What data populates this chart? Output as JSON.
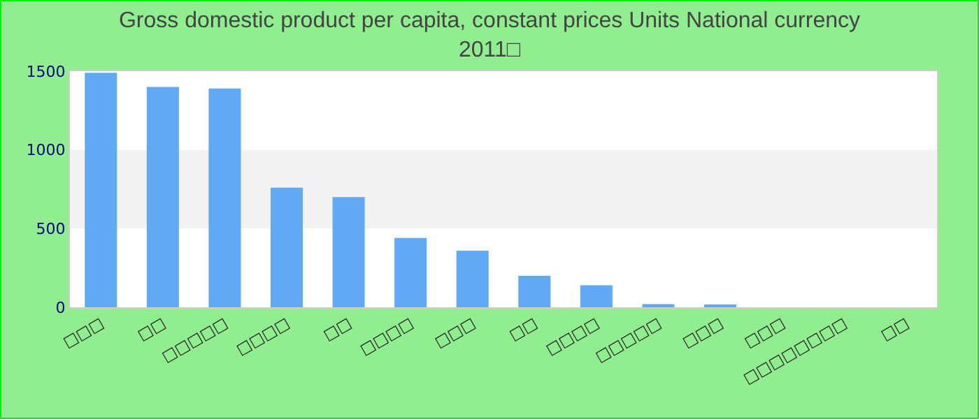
{
  "chart_data": {
    "type": "bar",
    "title": "Gross domestic product per capita, constant prices Units National currency\n2011□",
    "categories": [
      "□□□",
      "□□",
      "□□□□□",
      "□□□□",
      "□□",
      "□□□□",
      "□□□",
      "□□",
      "□□□□",
      "□□□□□",
      "□□□",
      "□□□",
      "□□□□□□□□",
      "□□"
    ],
    "values": [
      1490,
      1400,
      1390,
      760,
      700,
      440,
      360,
      200,
      140,
      20,
      10,
      0,
      0,
      0
    ],
    "color": "#61a9f5",
    "ylim": [
      0,
      1500
    ],
    "yticks": [
      0,
      500,
      1000,
      1500
    ],
    "bands": [
      {
        "axis": "y",
        "from": 500,
        "to": 1000,
        "color": "#f2f2f2"
      }
    ],
    "grid": false
  }
}
